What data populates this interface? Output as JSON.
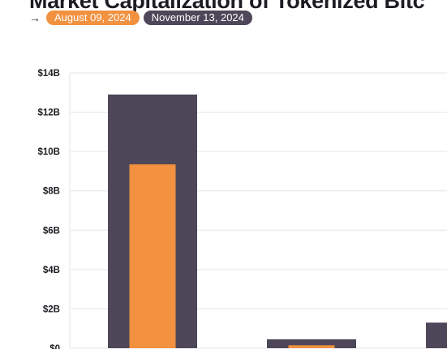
{
  "colors": {
    "series_a": "#f2913f",
    "series_b": "#4e4759",
    "grid": "#e6e6e9",
    "axis_text": "#1c1c22"
  },
  "chart_data": {
    "type": "bar",
    "title": "Market Capitalization of Tokenized Bitc",
    "arrow": "→",
    "xlabel": "",
    "ylabel": "",
    "ylim": [
      0,
      14
    ],
    "y_unit": "billion USD",
    "yticks": [
      "$0",
      "$2B",
      "$4B",
      "$6B",
      "$8B",
      "$10B",
      "$12B",
      "$14B"
    ],
    "grid": true,
    "legend_position": "top-left",
    "categories": [
      "",
      "",
      ""
    ],
    "series": [
      {
        "name": "August 09, 2024",
        "color": "#f2913f",
        "values": [
          9.35,
          0.15,
          null
        ]
      },
      {
        "name": "November 13, 2024",
        "color": "#4e4759",
        "values": [
          12.9,
          0.45,
          1.3
        ]
      }
    ]
  }
}
